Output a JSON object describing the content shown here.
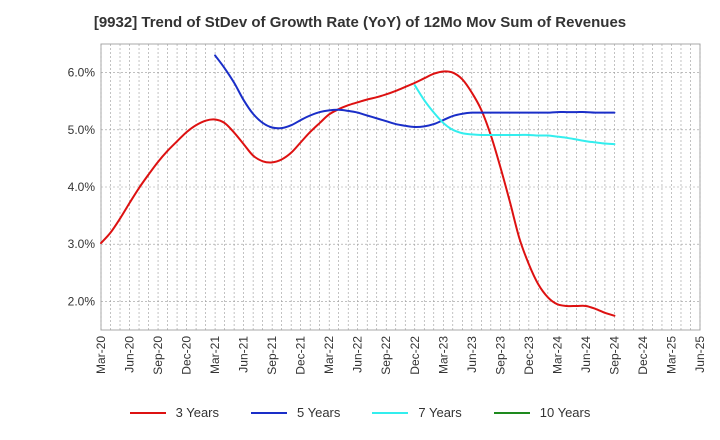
{
  "chart_data": {
    "type": "line",
    "title": "[9932]  Trend of StDev of Growth Rate (YoY) of 12Mo Mov Sum of Revenues",
    "xlabel": "",
    "ylabel": "",
    "ylim": [
      1.5,
      6.5
    ],
    "y_ticks": [
      2.0,
      3.0,
      4.0,
      5.0,
      6.0
    ],
    "y_tick_labels": [
      "2.0%",
      "3.0%",
      "4.0%",
      "5.0%",
      "6.0%"
    ],
    "grid": true,
    "legend_position": "bottom",
    "x_ticks": [
      "Mar-20",
      "Jun-20",
      "Sep-20",
      "Dec-20",
      "Mar-21",
      "Jun-21",
      "Sep-21",
      "Dec-21",
      "Mar-22",
      "Jun-22",
      "Sep-22",
      "Dec-22",
      "Mar-23",
      "Jun-23",
      "Sep-23",
      "Dec-23",
      "Mar-24",
      "Jun-24",
      "Sep-24",
      "Dec-24",
      "Mar-25",
      "Jun-25"
    ],
    "series": [
      {
        "name": "3 Years",
        "color": "#dd1111",
        "points": [
          [
            0,
            3.02
          ],
          [
            0.33,
            3.2
          ],
          [
            0.67,
            3.45
          ],
          [
            1,
            3.72
          ],
          [
            1.33,
            3.98
          ],
          [
            1.67,
            4.22
          ],
          [
            2,
            4.44
          ],
          [
            2.33,
            4.63
          ],
          [
            2.67,
            4.8
          ],
          [
            3,
            4.96
          ],
          [
            3.33,
            5.08
          ],
          [
            3.67,
            5.16
          ],
          [
            4,
            5.18
          ],
          [
            4.33,
            5.12
          ],
          [
            4.67,
            4.95
          ],
          [
            5,
            4.75
          ],
          [
            5.33,
            4.55
          ],
          [
            5.67,
            4.45
          ],
          [
            6,
            4.43
          ],
          [
            6.33,
            4.48
          ],
          [
            6.67,
            4.6
          ],
          [
            7,
            4.78
          ],
          [
            7.33,
            4.96
          ],
          [
            7.67,
            5.12
          ],
          [
            8,
            5.27
          ],
          [
            8.33,
            5.36
          ],
          [
            8.67,
            5.43
          ],
          [
            9,
            5.48
          ],
          [
            9.33,
            5.53
          ],
          [
            9.67,
            5.57
          ],
          [
            10,
            5.62
          ],
          [
            10.33,
            5.68
          ],
          [
            10.67,
            5.75
          ],
          [
            11,
            5.82
          ],
          [
            11.33,
            5.9
          ],
          [
            11.67,
            5.98
          ],
          [
            12,
            6.02
          ],
          [
            12.33,
            6.0
          ],
          [
            12.67,
            5.88
          ],
          [
            13,
            5.65
          ],
          [
            13.33,
            5.35
          ],
          [
            13.67,
            4.9
          ],
          [
            14,
            4.35
          ],
          [
            14.33,
            3.75
          ],
          [
            14.67,
            3.1
          ],
          [
            15,
            2.65
          ],
          [
            15.33,
            2.3
          ],
          [
            15.67,
            2.07
          ],
          [
            16,
            1.95
          ],
          [
            16.33,
            1.92
          ],
          [
            16.67,
            1.92
          ],
          [
            17,
            1.92
          ],
          [
            17.33,
            1.87
          ],
          [
            17.67,
            1.8
          ],
          [
            18,
            1.75
          ]
        ]
      },
      {
        "name": "5 Years",
        "color": "#1a2ec8",
        "points": [
          [
            4,
            6.3
          ],
          [
            4.33,
            6.08
          ],
          [
            4.67,
            5.82
          ],
          [
            5,
            5.52
          ],
          [
            5.33,
            5.28
          ],
          [
            5.67,
            5.12
          ],
          [
            6,
            5.04
          ],
          [
            6.33,
            5.03
          ],
          [
            6.67,
            5.08
          ],
          [
            7,
            5.17
          ],
          [
            7.33,
            5.25
          ],
          [
            7.67,
            5.31
          ],
          [
            8,
            5.34
          ],
          [
            8.33,
            5.35
          ],
          [
            8.67,
            5.33
          ],
          [
            9,
            5.3
          ],
          [
            9.33,
            5.25
          ],
          [
            9.67,
            5.2
          ],
          [
            10,
            5.15
          ],
          [
            10.33,
            5.1
          ],
          [
            10.67,
            5.07
          ],
          [
            11,
            5.05
          ],
          [
            11.33,
            5.06
          ],
          [
            11.67,
            5.1
          ],
          [
            12,
            5.17
          ],
          [
            12.33,
            5.24
          ],
          [
            12.67,
            5.28
          ],
          [
            13,
            5.3
          ],
          [
            13.33,
            5.3
          ],
          [
            13.67,
            5.3
          ],
          [
            14,
            5.3
          ],
          [
            14.33,
            5.3
          ],
          [
            14.67,
            5.3
          ],
          [
            15,
            5.3
          ],
          [
            15.33,
            5.3
          ],
          [
            15.67,
            5.3
          ],
          [
            16,
            5.31
          ],
          [
            16.33,
            5.31
          ],
          [
            16.67,
            5.31
          ],
          [
            17,
            5.31
          ],
          [
            17.33,
            5.3
          ],
          [
            17.67,
            5.3
          ],
          [
            18,
            5.3
          ]
        ]
      },
      {
        "name": "7 Years",
        "color": "#33eeee",
        "points": [
          [
            11,
            5.78
          ],
          [
            11.33,
            5.52
          ],
          [
            11.67,
            5.3
          ],
          [
            12,
            5.12
          ],
          [
            12.33,
            5.0
          ],
          [
            12.67,
            4.94
          ],
          [
            13,
            4.92
          ],
          [
            13.33,
            4.91
          ],
          [
            13.67,
            4.91
          ],
          [
            14,
            4.91
          ],
          [
            14.33,
            4.91
          ],
          [
            14.67,
            4.91
          ],
          [
            15,
            4.91
          ],
          [
            15.33,
            4.9
          ],
          [
            15.67,
            4.9
          ],
          [
            16,
            4.88
          ],
          [
            16.33,
            4.86
          ],
          [
            16.67,
            4.83
          ],
          [
            17,
            4.8
          ],
          [
            17.33,
            4.78
          ],
          [
            17.67,
            4.76
          ],
          [
            18,
            4.75
          ]
        ]
      },
      {
        "name": "10 Years",
        "color": "#1e8a1e",
        "points": []
      }
    ]
  }
}
